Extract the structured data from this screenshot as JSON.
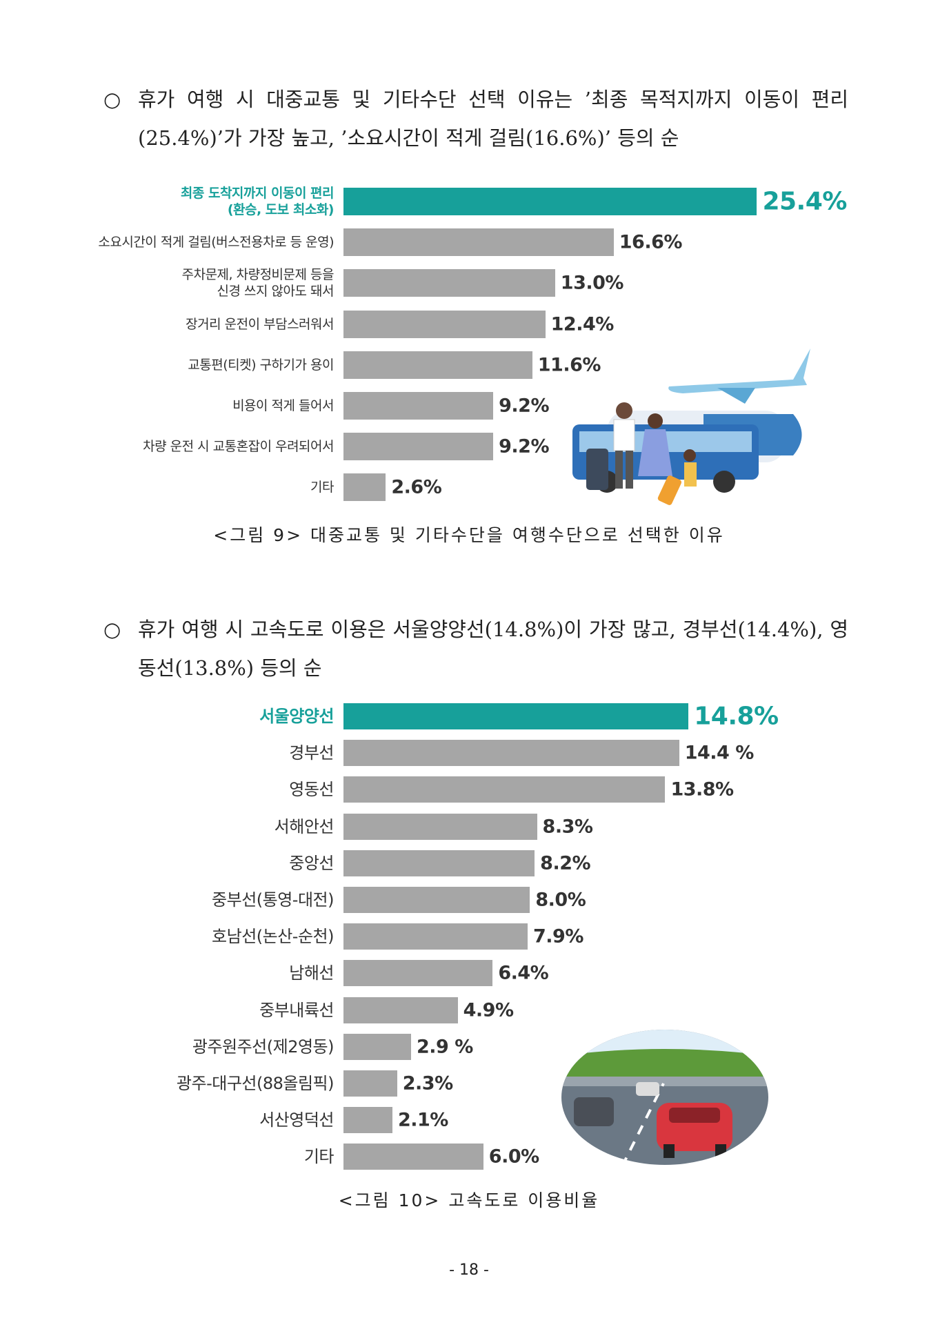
{
  "paragraphs": [
    {
      "bullet": "○",
      "text": "휴가 여행 시 대중교통 및 기타수단 선택 이유는 ’최종 목적지까지 이동이 편리(25.4%)’가 가장 높고, ’소요시간이 적게 걸림(16.6%)’ 등의 순"
    },
    {
      "bullet": "○",
      "text": "휴가 여행 시 고속도로 이용은 서울양양선(14.8%)이 가장 많고, 경부선(14.4%), 영동선(13.8%) 등의 순"
    }
  ],
  "chart_data": [
    {
      "type": "bar",
      "orientation": "horizontal",
      "color": "#a6a6a6",
      "highlight_color": "#17a09a",
      "highlight_index": 0,
      "categories": [
        "최종 도착지까지 이동이 편리\n(환승, 도보 최소화)",
        "소요시간이 적게 걸림(버스전용차로 등 운영)",
        "주차문제, 차량정비문제 등을\n신경 쓰지 않아도 돼서",
        "장거리 운전이 부담스러워서",
        "교통편(티켓) 구하기가 용이",
        "비용이 적게 들어서",
        "차량 운전 시 교통혼잡이 우려되어서",
        "기타"
      ],
      "values": [
        25.4,
        16.6,
        13.0,
        12.4,
        11.6,
        9.2,
        9.2,
        2.6
      ],
      "value_labels": [
        "25.4%",
        "16.6%",
        "13.0%",
        "12.4%",
        "11.6%",
        "9.2%",
        "9.2%",
        "2.6%"
      ],
      "caption": "<그림 9> 대중교통 및 기타수단을 여행수단으로 선택한 이유"
    },
    {
      "type": "bar",
      "orientation": "horizontal",
      "color": "#a6a6a6",
      "highlight_color": "#17a09a",
      "highlight_index": 0,
      "categories": [
        "서울양양선",
        "경부선",
        "영동선",
        "서해안선",
        "중앙선",
        "중부선(통영-대전)",
        "호남선(논산-순천)",
        "남해선",
        "중부내륙선",
        "광주원주선(제2영동)",
        "광주-대구선(88올림픽)",
        "서산영덕선",
        "기타"
      ],
      "values": [
        14.8,
        14.4,
        13.8,
        8.3,
        8.2,
        8.0,
        7.9,
        6.4,
        4.9,
        2.9,
        2.3,
        2.1,
        6.0
      ],
      "value_labels": [
        "14.8%",
        "14.4 %",
        "13.8%",
        "8.3%",
        "8.2%",
        "8.0%",
        "7.9%",
        "6.4%",
        "4.9%",
        "2.9 %",
        "2.3%",
        "2.1%",
        "6.0%"
      ],
      "caption": "<그림 10> 고속도로 이용비율"
    }
  ],
  "page_number": "- 18 -"
}
